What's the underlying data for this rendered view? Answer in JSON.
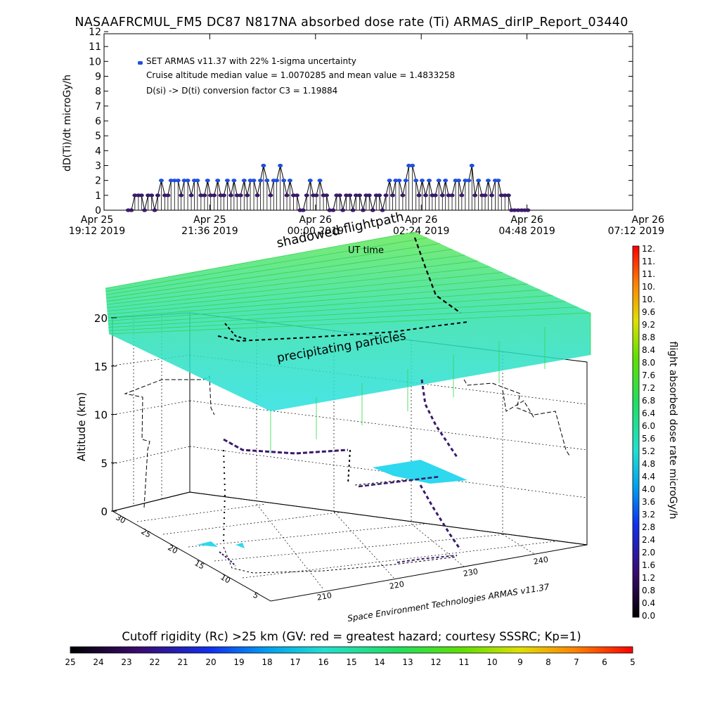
{
  "chart_data": [
    {
      "type": "scatter",
      "title": "NASAAFRCMUL_FM5 DC87 N817NA absorbed dose rate (Ti) ARMAS_dirIP_Report_03440",
      "ylabel": "dD(Ti)/dt microGy/h",
      "xlabel": "UT time",
      "ylim": [
        0,
        12
      ],
      "yticks": [
        "0",
        "1",
        "2",
        "3",
        "4",
        "5",
        "6",
        "7",
        "8",
        "9",
        "10",
        "11",
        "12"
      ],
      "xticks": [
        {
          "line1": "Apr 25",
          "line2": "19:12 2019"
        },
        {
          "line1": "Apr 25",
          "line2": "21:36 2019"
        },
        {
          "line1": "Apr 26",
          "line2": "00:00 2019"
        },
        {
          "line1": "Apr 26",
          "line2": "02:24 2019"
        },
        {
          "line1": "Apr 26",
          "line2": "04:48 2019"
        },
        {
          "line1": "Apr 26",
          "line2": "07:12 2019"
        }
      ],
      "legend": [
        "SET ARMAS v11.37 with 22% 1-sigma uncertainty",
        "Cruise altitude median value = 1.0070285 and mean value = 1.4833258",
        "D(si) -> D(ti) conversion factor C3 = 1.19884"
      ],
      "series": [
        {
          "x_hours_since_start": [
            0.55,
            0.62,
            0.7,
            0.78,
            0.85,
            0.92,
            1.0,
            1.08,
            1.15,
            1.22,
            1.3,
            1.38,
            1.45,
            1.52,
            1.6,
            1.68,
            1.75,
            1.82,
            1.9,
            1.98,
            2.05,
            2.12,
            2.2,
            2.28,
            2.35,
            2.42,
            2.5,
            2.58,
            2.65,
            2.72,
            2.8,
            2.88,
            2.95,
            3.02,
            3.1,
            3.18,
            3.25,
            3.32,
            3.4,
            3.48,
            3.55,
            3.62,
            3.7,
            3.78,
            3.85,
            3.92,
            4.0,
            4.08,
            4.15,
            4.22,
            4.3,
            4.38,
            4.45,
            4.52,
            4.6,
            4.68,
            4.75,
            4.82,
            4.9,
            4.98,
            5.05,
            5.12,
            5.2,
            5.28,
            5.35,
            5.42,
            5.5,
            5.58,
            5.65,
            5.72,
            5.8,
            5.88,
            5.95,
            6.02,
            6.1,
            6.18,
            6.25,
            6.32,
            6.4,
            6.48,
            6.55,
            6.62,
            6.7,
            6.78,
            6.85,
            6.92,
            7.0,
            7.08,
            7.15,
            7.22,
            7.3,
            7.38,
            7.45,
            7.52,
            7.6,
            7.68,
            7.75,
            7.82,
            7.9,
            7.98,
            8.05,
            8.12,
            8.2,
            8.28,
            8.35,
            8.42,
            8.5,
            8.58,
            8.65,
            8.72,
            8.8,
            8.88,
            8.95,
            9.02,
            9.1,
            9.18,
            9.25,
            9.32,
            9.4,
            9.48,
            9.55,
            9.62
          ],
          "y": [
            0,
            0,
            1,
            1,
            1,
            0,
            1,
            1,
            0,
            1,
            2,
            1,
            1,
            2,
            2,
            2,
            1,
            2,
            2,
            1,
            2,
            2,
            1,
            1,
            2,
            1,
            1,
            2,
            1,
            1,
            2,
            1,
            2,
            1,
            1,
            2,
            1,
            2,
            2,
            1,
            2,
            3,
            2,
            1,
            2,
            2,
            3,
            2,
            1,
            2,
            1,
            1,
            0,
            0,
            1,
            2,
            1,
            1,
            2,
            1,
            1,
            0,
            0,
            1,
            1,
            0,
            1,
            1,
            0,
            1,
            1,
            0,
            1,
            1,
            0,
            1,
            1,
            0,
            1,
            2,
            1,
            2,
            2,
            1,
            2,
            3,
            3,
            2,
            1,
            2,
            1,
            2,
            1,
            1,
            2,
            1,
            2,
            1,
            1,
            2,
            2,
            1,
            2,
            2,
            3,
            1,
            2,
            1,
            1,
            2,
            1,
            2,
            2,
            1,
            1,
            1,
            0,
            0,
            0,
            0,
            0,
            0
          ]
        }
      ]
    },
    {
      "type": "scatter",
      "title": "",
      "zlabel": "Altitude (km)",
      "zlim": [
        0,
        20
      ],
      "zticks": [
        "0",
        "5",
        "10",
        "15",
        "20"
      ],
      "x_ticks": [
        "210",
        "220",
        "230",
        "240"
      ],
      "y_ticks": [
        "5",
        "10",
        "15",
        "20",
        "25",
        "30"
      ],
      "annotations": [
        "shadowed flightpath",
        "precipitating particles"
      ],
      "credit": "Space Environment Technologies ARMAS v11.37"
    },
    {
      "type": "heatmap",
      "label": "flight absorbed dose rate microGy/h",
      "range": [
        0.0,
        12.0
      ],
      "ticks": [
        "0.0",
        "0.4",
        "0.8",
        "1.2",
        "1.6",
        "2.0",
        "2.4",
        "2.8",
        "3.2",
        "3.6",
        "4.0",
        "4.4",
        "4.8",
        "5.2",
        "5.6",
        "6.0",
        "6.4",
        "6.8",
        "7.2",
        "7.6",
        "8.0",
        "8.4",
        "8.8",
        "9.2",
        "9.6",
        "10.",
        "10.",
        "11.",
        "11.",
        "12."
      ]
    },
    {
      "type": "heatmap",
      "label": "Cutoff rigidity (Rc) >25 km (GV: red = greatest hazard; courtesy SSSRC; Kp=1)",
      "ticks": [
        "25",
        "24",
        "23",
        "22",
        "21",
        "20",
        "19",
        "18",
        "17",
        "16",
        "15",
        "14",
        "13",
        "12",
        "11",
        "10",
        "9",
        "8",
        "7",
        "6",
        "5"
      ]
    }
  ],
  "colors": {
    "axis": "#000000",
    "marker": "#1f4fe0",
    "marker_fill": "#3a1a6a",
    "grid_green": "#3ed84a",
    "layer_cyan": "#28e0d0",
    "patch_cyan": "#2ed8ee"
  }
}
